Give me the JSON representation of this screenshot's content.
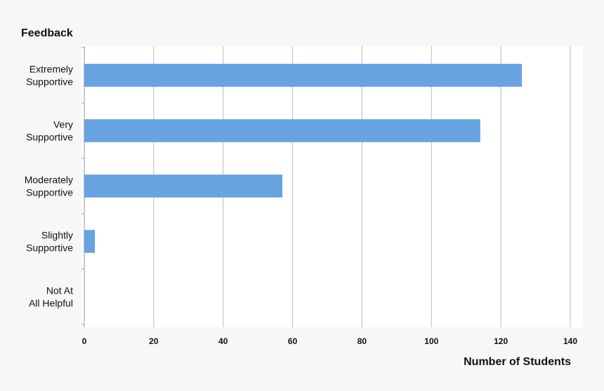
{
  "chart_data": {
    "type": "hbar",
    "title": "Feedback",
    "x_label": "Number of Students",
    "categories": [
      "Extremely\nSupportive",
      "Very\nSupportive",
      "Moderately\nSupportive",
      "Slightly\nSupportive",
      "Not At\nAll Helpful"
    ],
    "values": [
      126,
      114,
      57,
      3,
      0
    ],
    "color": "#68a3e1",
    "xlim": [
      0,
      140
    ],
    "xticks": [
      0,
      20,
      40,
      60,
      80,
      100,
      120,
      140
    ],
    "grid": true
  }
}
